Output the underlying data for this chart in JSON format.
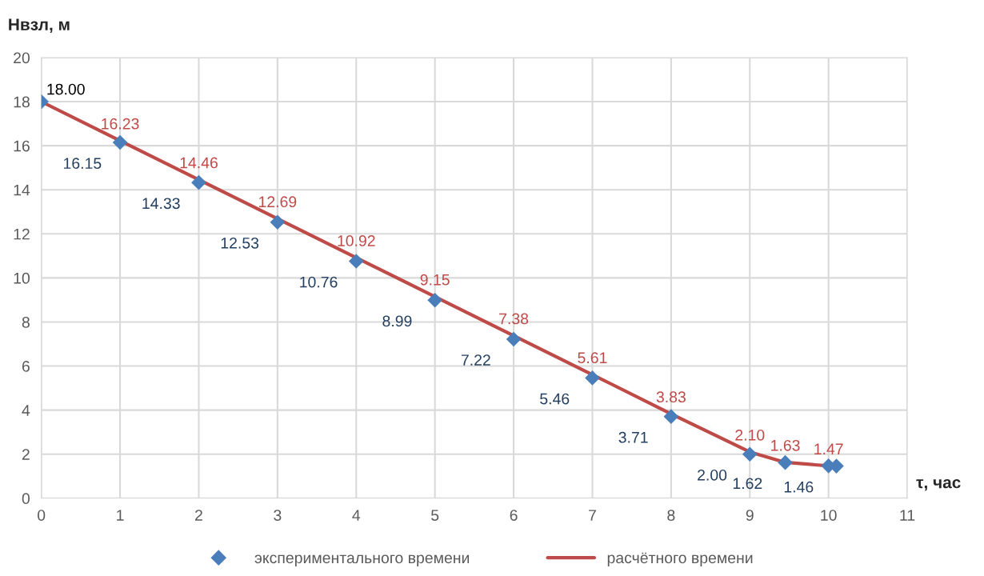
{
  "chart_data": {
    "type": "line",
    "ylabel": "Нвзл, м",
    "xlabel": "τ, час",
    "xlim": [
      0,
      11
    ],
    "xticks": [
      0,
      1,
      2,
      3,
      4,
      5,
      6,
      7,
      8,
      9,
      10,
      11
    ],
    "ylim": [
      0,
      20
    ],
    "yticks": [
      0,
      2,
      4,
      6,
      8,
      10,
      12,
      14,
      16,
      18,
      20
    ],
    "grid": true,
    "legend": "bottom",
    "annotations": [
      {
        "text": "18.00",
        "x": 0,
        "y": 18
      }
    ],
    "series": [
      {
        "name": "экспериментального времени",
        "type": "scatter",
        "marker": "diamond",
        "color": "#4a7ebb",
        "x": [
          0,
          1,
          2,
          3,
          4,
          5,
          6,
          7,
          8,
          9,
          9.45,
          10,
          10.1
        ],
        "values": [
          18,
          16.15,
          14.33,
          12.53,
          10.76,
          8.99,
          7.22,
          5.46,
          3.71,
          2.0,
          1.62,
          1.47,
          1.46
        ],
        "value_labels": [
          null,
          "16.15",
          "14.33",
          "12.53",
          "10.76",
          "8.99",
          "7.22",
          "5.46",
          "3.71",
          "2.00",
          "1.62",
          null,
          "1.46"
        ]
      },
      {
        "name": "расчётного времени",
        "marker": "none",
        "color": "#be4b48",
        "x": [
          0,
          1,
          2,
          3,
          4,
          5,
          6,
          7,
          8,
          9,
          9.45,
          10
        ],
        "values": [
          18,
          16.23,
          14.46,
          12.69,
          10.92,
          9.15,
          7.38,
          5.61,
          3.83,
          2.1,
          1.63,
          1.47
        ],
        "value_labels": [
          null,
          "16.23",
          "14.46",
          "12.69",
          "10.92",
          "9.15",
          "7.38",
          "5.61",
          "3.83",
          "2.10",
          "1.63",
          "1.47"
        ]
      }
    ]
  }
}
